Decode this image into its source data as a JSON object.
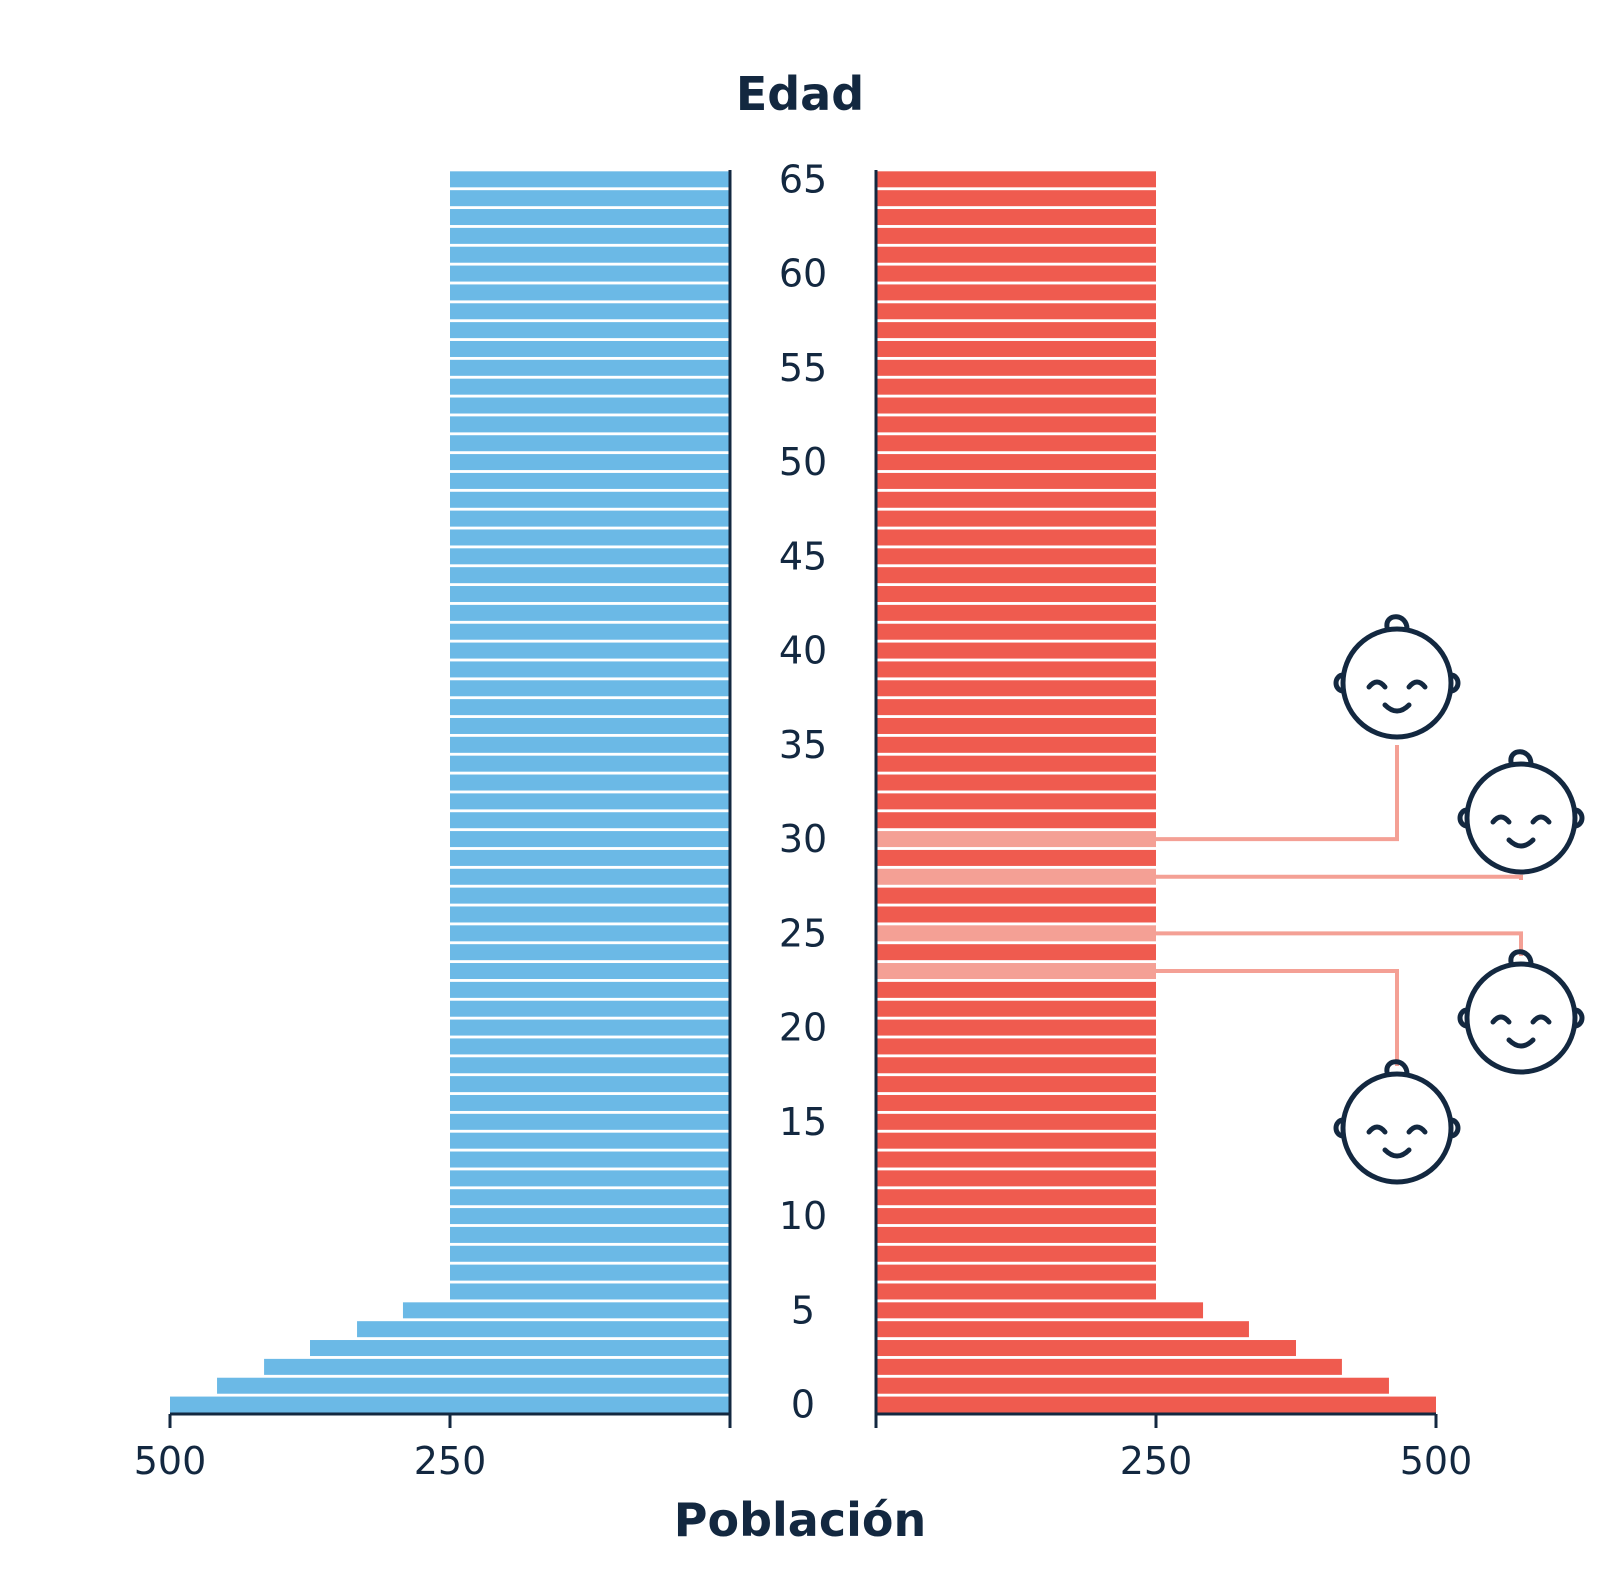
{
  "chart_data": {
    "type": "bar",
    "subtype": "population-pyramid",
    "ylabel": "Edad",
    "xlabel": "Población",
    "age_ticks": [
      "0",
      "5",
      "10",
      "15",
      "20",
      "25",
      "30",
      "35",
      "40",
      "45",
      "50",
      "55",
      "60",
      "65"
    ],
    "left_x_ticks": [
      "500",
      "250"
    ],
    "right_x_ticks": [
      "250",
      "500"
    ],
    "x_range": [
      0,
      500
    ],
    "ages": [
      0,
      1,
      2,
      3,
      4,
      5,
      6,
      7,
      8,
      9,
      10,
      11,
      12,
      13,
      14,
      15,
      16,
      17,
      18,
      19,
      20,
      21,
      22,
      23,
      24,
      25,
      26,
      27,
      28,
      29,
      30,
      31,
      32,
      33,
      34,
      35,
      36,
      37,
      38,
      39,
      40,
      41,
      42,
      43,
      44,
      45,
      46,
      47,
      48,
      49,
      50,
      51,
      52,
      53,
      54,
      55,
      56,
      57,
      58,
      59,
      60,
      61,
      62,
      63,
      64,
      65
    ],
    "series": [
      {
        "side": "left",
        "color": "#6bb9e6",
        "values": [
          500,
          458,
          416,
          375,
          333,
          292,
          250,
          250,
          250,
          250,
          250,
          250,
          250,
          250,
          250,
          250,
          250,
          250,
          250,
          250,
          250,
          250,
          250,
          250,
          250,
          250,
          250,
          250,
          250,
          250,
          250,
          250,
          250,
          250,
          250,
          250,
          250,
          250,
          250,
          250,
          250,
          250,
          250,
          250,
          250,
          250,
          250,
          250,
          250,
          250,
          250,
          250,
          250,
          250,
          250,
          250,
          250,
          250,
          250,
          250,
          250,
          250,
          250,
          250,
          250,
          250
        ]
      },
      {
        "side": "right",
        "color": "#ef5b4f",
        "highlight_color": "#f4a095",
        "highlight_ages": [
          23,
          25,
          28,
          30
        ],
        "values": [
          500,
          458,
          416,
          375,
          333,
          292,
          250,
          250,
          250,
          250,
          250,
          250,
          250,
          250,
          250,
          250,
          250,
          250,
          250,
          250,
          250,
          250,
          250,
          250,
          250,
          250,
          250,
          250,
          250,
          250,
          250,
          250,
          250,
          250,
          250,
          250,
          250,
          250,
          250,
          250,
          250,
          250,
          250,
          250,
          250,
          250,
          250,
          250,
          250,
          250,
          250,
          250,
          250,
          250,
          250,
          250,
          250,
          250,
          250,
          250,
          250,
          250,
          250,
          250,
          250,
          250
        ]
      }
    ],
    "annotations": [
      {
        "age": 30,
        "icon": "baby-face-icon"
      },
      {
        "age": 28,
        "icon": "baby-face-icon"
      },
      {
        "age": 25,
        "icon": "baby-face-icon"
      },
      {
        "age": 23,
        "icon": "baby-face-icon"
      }
    ],
    "axis_color": "#132840"
  }
}
